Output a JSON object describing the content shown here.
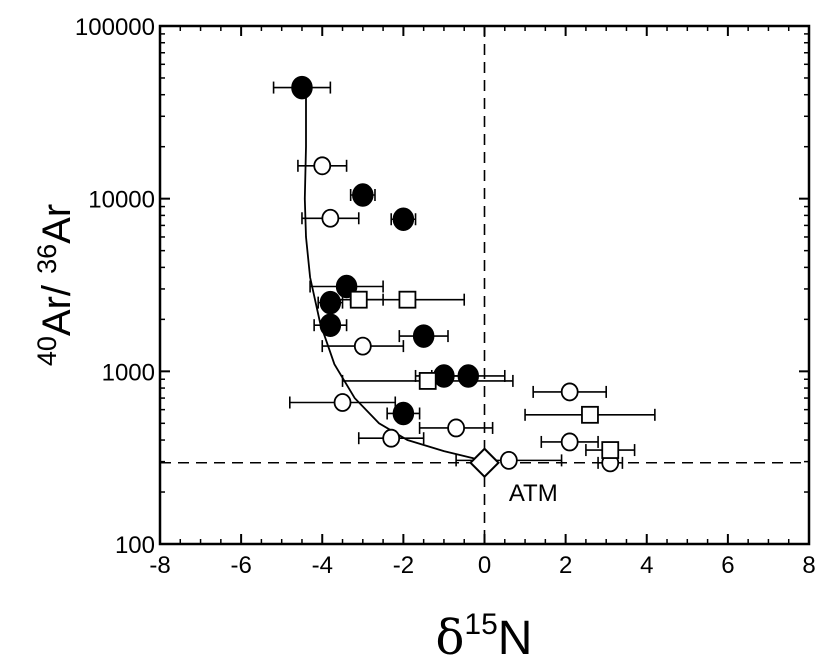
{
  "chart_data": {
    "type": "scatter",
    "xlabel": {
      "symbol": "δ",
      "sup": "15",
      "base": "N"
    },
    "ylabel": {
      "sup1": "40",
      "base1": "Ar/ ",
      "sup2": "36",
      "base2": "Ar"
    },
    "xlim": [
      -8,
      8
    ],
    "ylim": [
      100,
      100000
    ],
    "yscale": "log",
    "xticks": [
      -8,
      -6,
      -4,
      -2,
      0,
      2,
      4,
      6,
      8
    ],
    "xtick_labels": [
      "-8",
      "-6",
      "-4",
      "-2",
      "0",
      "2",
      "4",
      "6",
      "8"
    ],
    "yticks": [
      100,
      1000,
      10000,
      100000
    ],
    "ytick_labels": [
      "100",
      "1000",
      "10000",
      "100000"
    ],
    "grid": false,
    "reference_lines": {
      "vertical_x": 0,
      "horizontal_y": 295.5,
      "style": "dashed"
    },
    "annotation": {
      "text": "ATM",
      "x": 0.6,
      "y": 200
    },
    "atm_point": {
      "marker": "diamond",
      "x": 0,
      "y": 295.5
    },
    "series": [
      {
        "marker": "filled-circle",
        "points": [
          {
            "x": -4.5,
            "y": 44000,
            "xerr": [
              0.7,
              0.7
            ]
          },
          {
            "x": -3.0,
            "y": 10500,
            "xerr": [
              0.3,
              0.3
            ]
          },
          {
            "x": -2.0,
            "y": 7600,
            "xerr": [
              0.3,
              0.3
            ]
          },
          {
            "x": -3.4,
            "y": 3100,
            "xerr": [
              0.9,
              0.9
            ]
          },
          {
            "x": -3.8,
            "y": 2500,
            "xerr": [
              0.3,
              0.3
            ]
          },
          {
            "x": -3.8,
            "y": 1850,
            "xerr": [
              0.4,
              0.4
            ]
          },
          {
            "x": -1.5,
            "y": 1600,
            "xerr": [
              0.6,
              0.6
            ]
          },
          {
            "x": -1.0,
            "y": 940,
            "xerr": [
              0.7,
              0.7
            ]
          },
          {
            "x": -0.4,
            "y": 940,
            "xerr": [
              0.9,
              0.9
            ]
          },
          {
            "x": -2.0,
            "y": 570,
            "xerr": [
              0.4,
              0.4
            ]
          }
        ]
      },
      {
        "marker": "open-circle",
        "points": [
          {
            "x": -4.0,
            "y": 15500,
            "xerr": [
              0.6,
              0.6
            ]
          },
          {
            "x": -3.8,
            "y": 7700,
            "xerr": [
              0.7,
              0.7
            ]
          },
          {
            "x": -3.0,
            "y": 1400,
            "xerr": [
              1.0,
              1.0
            ]
          },
          {
            "x": -3.5,
            "y": 660,
            "xerr": [
              1.3,
              1.3
            ]
          },
          {
            "x": -2.3,
            "y": 410,
            "xerr": [
              0.8,
              0.8
            ]
          },
          {
            "x": -0.7,
            "y": 470,
            "xerr": [
              0.9,
              0.9
            ]
          },
          {
            "x": 0.6,
            "y": 305,
            "xerr": [
              1.3,
              1.3
            ]
          },
          {
            "x": 2.1,
            "y": 760,
            "xerr": [
              0.9,
              0.9
            ]
          },
          {
            "x": 2.1,
            "y": 390,
            "xerr": [
              0.7,
              0.7
            ]
          },
          {
            "x": 3.1,
            "y": 295,
            "xerr": [
              0.3,
              0.3
            ]
          }
        ]
      },
      {
        "marker": "open-square",
        "points": [
          {
            "x": -3.1,
            "y": 2600,
            "xerr": [
              0.6,
              0.6
            ]
          },
          {
            "x": -1.9,
            "y": 2600,
            "xerr": [
              1.4,
              1.4
            ]
          },
          {
            "x": -1.4,
            "y": 880,
            "xerr": [
              2.1,
              2.1
            ]
          },
          {
            "x": 2.6,
            "y": 560,
            "xerr": [
              1.6,
              1.6
            ]
          },
          {
            "x": 3.1,
            "y": 350,
            "xerr": [
              0.6,
              0.6
            ]
          }
        ]
      }
    ],
    "curve": [
      {
        "x": -4.4,
        "y": 42000
      },
      {
        "x": -4.4,
        "y": 20000
      },
      {
        "x": -4.43,
        "y": 10000
      },
      {
        "x": -4.4,
        "y": 6000
      },
      {
        "x": -4.3,
        "y": 3500
      },
      {
        "x": -4.05,
        "y": 1900
      },
      {
        "x": -3.7,
        "y": 1100
      },
      {
        "x": -3.2,
        "y": 700
      },
      {
        "x": -2.6,
        "y": 500
      },
      {
        "x": -1.9,
        "y": 400
      },
      {
        "x": -1.0,
        "y": 345
      },
      {
        "x": -0.3,
        "y": 315
      },
      {
        "x": 0.0,
        "y": 300
      }
    ]
  }
}
